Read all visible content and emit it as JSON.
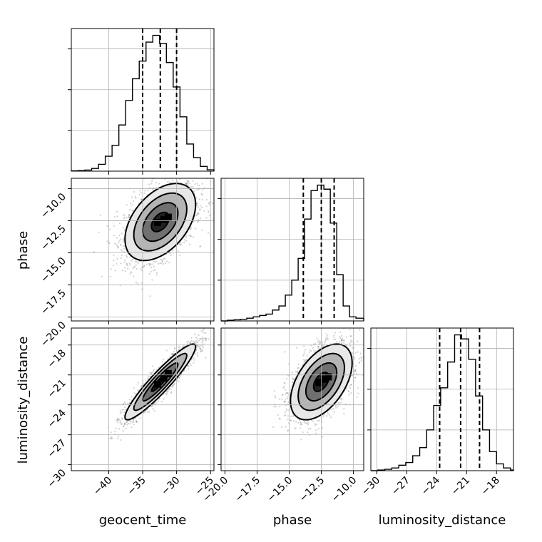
{
  "chart_data": {
    "type": "corner",
    "parameters": [
      "geocent_time",
      "phase",
      "luminosity_distance"
    ],
    "ranges": {
      "geocent_time": [
        -45.5,
        -24.5
      ],
      "phase": [
        -20.3,
        -9.2
      ],
      "luminosity_distance": [
        -30.6,
        -16.3
      ]
    },
    "ticks": {
      "geocent_time": [
        -40,
        -35,
        -30,
        -25
      ],
      "phase": [
        -20.0,
        -17.5,
        -15.0,
        -12.5,
        -10.0
      ],
      "luminosity_distance": [
        -30,
        -27,
        -24,
        -21,
        -18
      ]
    },
    "tick_labels": {
      "geocent_time": [
        "−40",
        "−35",
        "−30",
        "−25"
      ],
      "phase": [
        "−20.0",
        "−17.5",
        "−15.0",
        "−12.5",
        "−10.0"
      ],
      "luminosity_distance": [
        "−30",
        "−27",
        "−24",
        "−21",
        "−18"
      ]
    },
    "grid": true,
    "quantile_lines": {
      "geocent_time": [
        -35.0,
        -32.4,
        -30.0
      ],
      "phase": [
        -13.9,
        -12.5,
        -11.5
      ],
      "luminosity_distance": [
        -23.7,
        -21.6,
        -19.7
      ]
    },
    "histograms": [
      {
        "parameter": "geocent_time",
        "bin_edges": [
          -45.5,
          -44.5,
          -43.5,
          -42.5,
          -41.5,
          -40.5,
          -39.5,
          -38.5,
          -37.5,
          -36.5,
          -35.5,
          -34.5,
          -33.5,
          -32.5,
          -31.5,
          -30.5,
          -29.5,
          -28.5,
          -27.5,
          -26.5,
          -25.5,
          -24.5
        ],
        "counts": [
          0.002,
          0.004,
          0.008,
          0.02,
          0.05,
          0.11,
          0.19,
          0.34,
          0.52,
          0.68,
          0.81,
          0.95,
          1.0,
          0.94,
          0.8,
          0.62,
          0.4,
          0.2,
          0.1,
          0.035,
          0.01
        ]
      },
      {
        "parameter": "phase",
        "bin_edges": [
          -20.3,
          -19.8,
          -19.3,
          -18.8,
          -18.3,
          -17.8,
          -17.3,
          -16.8,
          -16.3,
          -15.8,
          -15.3,
          -14.8,
          -14.3,
          -13.8,
          -13.3,
          -12.8,
          -12.3,
          -11.8,
          -11.3,
          -10.8,
          -10.3,
          -9.8,
          -9.2
        ],
        "counts": [
          0.0,
          0.005,
          0.008,
          0.012,
          0.02,
          0.03,
          0.04,
          0.05,
          0.08,
          0.11,
          0.19,
          0.3,
          0.46,
          0.75,
          0.96,
          1.0,
          0.97,
          0.72,
          0.34,
          0.11,
          0.03,
          0.02
        ]
      },
      {
        "parameter": "luminosity_distance",
        "bin_edges": [
          -30.6,
          -29.9,
          -29.2,
          -28.5,
          -27.8,
          -27.1,
          -26.4,
          -25.7,
          -25.0,
          -24.3,
          -23.6,
          -22.9,
          -22.2,
          -21.5,
          -20.8,
          -20.1,
          -19.4,
          -18.7,
          -18.0,
          -17.3,
          -16.6,
          -16.3
        ],
        "counts": [
          0.0,
          0.005,
          0.01,
          0.02,
          0.04,
          0.06,
          0.11,
          0.17,
          0.3,
          0.48,
          0.61,
          0.8,
          1.0,
          0.97,
          0.82,
          0.55,
          0.3,
          0.14,
          0.05,
          0.02,
          0.005
        ]
      }
    ],
    "panels_2d": [
      {
        "x": "geocent_time",
        "y": "phase",
        "mean": [
          -32.4,
          -12.6
        ],
        "sigma": [
          2.6,
          1.5
        ],
        "correlation": 0.45,
        "contour_levels_sigma": [
          0.5,
          1.0,
          1.5,
          2.0
        ]
      },
      {
        "x": "geocent_time",
        "y": "luminosity_distance",
        "mean": [
          -32.4,
          -21.7
        ],
        "sigma": [
          2.6,
          1.9
        ],
        "correlation": 0.93,
        "contour_levels_sigma": [
          0.5,
          1.0,
          1.5,
          2.0
        ]
      },
      {
        "x": "phase",
        "y": "luminosity_distance",
        "mean": [
          -12.5,
          -21.7
        ],
        "sigma": [
          1.2,
          1.9
        ],
        "correlation": 0.5,
        "contour_levels_sigma": [
          0.5,
          1.0,
          1.5,
          2.0
        ]
      }
    ]
  }
}
